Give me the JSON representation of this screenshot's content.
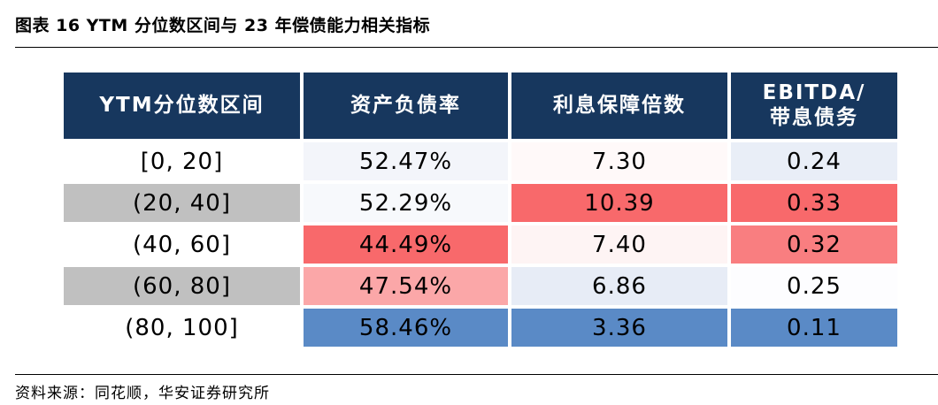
{
  "title": "图表 16 YTM 分位数区间与 23 年偿债能力相关指标",
  "table": {
    "headers": [
      {
        "line1": "YTM分位数区间",
        "line2": ""
      },
      {
        "line1": "资产负债率",
        "line2": ""
      },
      {
        "line1": "利息保障倍数",
        "line2": ""
      },
      {
        "line1": "EBITDA/",
        "line2": "带息债务"
      }
    ],
    "rows": [
      {
        "label": "[0, 20]",
        "label_bg": "#ffffff",
        "cells": [
          {
            "value": "52.47%",
            "bg": "#f3f5fa"
          },
          {
            "value": "7.30",
            "bg": "#fff9f9"
          },
          {
            "value": "0.24",
            "bg": "#e9eef7"
          }
        ]
      },
      {
        "label": "(20, 40]",
        "label_bg": "#c0c0c0",
        "cells": [
          {
            "value": "52.29%",
            "bg": "#f7f9fc"
          },
          {
            "value": "10.39",
            "bg": "#f8696b"
          },
          {
            "value": "0.33",
            "bg": "#f8696b"
          }
        ]
      },
      {
        "label": "(40, 60]",
        "label_bg": "#ffffff",
        "cells": [
          {
            "value": "44.49%",
            "bg": "#f8696b"
          },
          {
            "value": "7.40",
            "bg": "#fef4f4"
          },
          {
            "value": "0.32",
            "bg": "#f97e80"
          }
        ]
      },
      {
        "label": "(60, 80]",
        "label_bg": "#c0c0c0",
        "cells": [
          {
            "value": "47.54%",
            "bg": "#fba7a8"
          },
          {
            "value": "6.86",
            "bg": "#e7ecf6"
          },
          {
            "value": "0.25",
            "bg": "#fdfdff"
          }
        ]
      },
      {
        "label": "(80, 100]",
        "label_bg": "#ffffff",
        "cells": [
          {
            "value": "58.46%",
            "bg": "#5a8ac6"
          },
          {
            "value": "3.36",
            "bg": "#5a8ac6"
          },
          {
            "value": "0.11",
            "bg": "#5a8ac6"
          }
        ]
      }
    ]
  },
  "source": "资料来源：同花顺，华安证券研究所"
}
